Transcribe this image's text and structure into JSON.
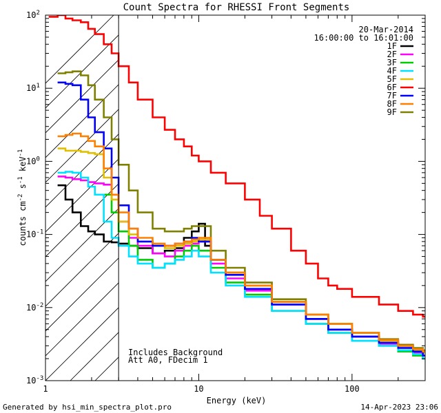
{
  "chart_data": {
    "type": "line",
    "title": "Count Spectra for RHESSI Front Segments",
    "xlabel": "Energy (keV)",
    "ylabel_main": "counts cm",
    "ylabel_exp1": "-2",
    "ylabel_mid": " s",
    "ylabel_exp2": "-1",
    "ylabel_end": " keV",
    "ylabel_exp3": "-1",
    "x_scale": "log",
    "y_scale": "log",
    "xlim": [
      1,
      300
    ],
    "ylim": [
      0.001,
      100
    ],
    "x_tick_labels": [
      {
        "value": 1,
        "label": "1"
      },
      {
        "value": 10,
        "label": "10"
      },
      {
        "value": 100,
        "label": "100"
      }
    ],
    "y_tick_labels": [
      {
        "exp": -3,
        "base": "10",
        "sup": "-3"
      },
      {
        "exp": -2,
        "base": "10",
        "sup": "-2"
      },
      {
        "exp": -1,
        "base": "10",
        "sup": "-1"
      },
      {
        "exp": 0,
        "base": "10",
        "sup": "0"
      },
      {
        "exp": 1,
        "base": "10",
        "sup": "1"
      },
      {
        "exp": 2,
        "base": "10",
        "sup": "2"
      }
    ],
    "date": "20-Mar-2014",
    "time_range": "16:00:00 to 16:01:00",
    "hatched_region_xmax": 3,
    "notes": [
      "Includes Background",
      "Att A0, FDecim 1"
    ],
    "legend_position": "top-right",
    "series": [
      {
        "name": "1F",
        "color": "#000000",
        "points": [
          [
            1.2,
            0.47
          ],
          [
            1.35,
            0.3
          ],
          [
            1.5,
            0.2
          ],
          [
            1.7,
            0.13
          ],
          [
            1.9,
            0.11
          ],
          [
            2.1,
            0.1
          ],
          [
            2.4,
            0.08
          ],
          [
            2.7,
            0.078
          ],
          [
            3,
            0.075
          ],
          [
            3.5,
            0.07
          ],
          [
            4,
            0.065
          ],
          [
            5,
            0.055
          ],
          [
            6,
            0.06
          ],
          [
            7,
            0.065
          ],
          [
            8,
            0.09
          ],
          [
            9,
            0.11
          ],
          [
            10,
            0.14
          ],
          [
            11,
            0.07
          ],
          [
            12,
            0.045
          ],
          [
            15,
            0.03
          ],
          [
            20,
            0.02
          ],
          [
            30,
            0.012
          ],
          [
            50,
            0.007
          ],
          [
            70,
            0.005
          ],
          [
            100,
            0.004
          ],
          [
            150,
            0.0035
          ],
          [
            200,
            0.003
          ],
          [
            250,
            0.0025
          ],
          [
            290,
            0.002
          ]
        ]
      },
      {
        "name": "2F",
        "color": "#ff00ff",
        "points": [
          [
            1.2,
            0.62
          ],
          [
            1.35,
            0.6
          ],
          [
            1.5,
            0.57
          ],
          [
            1.7,
            0.55
          ],
          [
            1.9,
            0.52
          ],
          [
            2.1,
            0.5
          ],
          [
            2.4,
            0.48
          ],
          [
            2.7,
            0.35
          ],
          [
            3,
            0.15
          ],
          [
            3.5,
            0.09
          ],
          [
            4,
            0.07
          ],
          [
            5,
            0.055
          ],
          [
            6,
            0.05
          ],
          [
            7,
            0.06
          ],
          [
            8,
            0.07
          ],
          [
            9,
            0.075
          ],
          [
            10,
            0.08
          ],
          [
            12,
            0.04
          ],
          [
            15,
            0.025
          ],
          [
            20,
            0.017
          ],
          [
            30,
            0.011
          ],
          [
            50,
            0.007
          ],
          [
            70,
            0.005
          ],
          [
            100,
            0.004
          ],
          [
            150,
            0.0032
          ],
          [
            200,
            0.0028
          ],
          [
            250,
            0.0024
          ],
          [
            290,
            0.0022
          ]
        ]
      },
      {
        "name": "3F",
        "color": "#00cc00",
        "points": [
          [
            2.4,
            0.35
          ],
          [
            2.7,
            0.2
          ],
          [
            3,
            0.11
          ],
          [
            3.5,
            0.07
          ],
          [
            4,
            0.045
          ],
          [
            5,
            0.035
          ],
          [
            6,
            0.04
          ],
          [
            7,
            0.05
          ],
          [
            8,
            0.06
          ],
          [
            9,
            0.07
          ],
          [
            10,
            0.06
          ],
          [
            12,
            0.035
          ],
          [
            15,
            0.022
          ],
          [
            20,
            0.015
          ],
          [
            30,
            0.009
          ],
          [
            50,
            0.006
          ],
          [
            70,
            0.0045
          ],
          [
            100,
            0.0035
          ],
          [
            150,
            0.003
          ],
          [
            200,
            0.0025
          ],
          [
            250,
            0.0022
          ],
          [
            290,
            0.002
          ]
        ]
      },
      {
        "name": "4F",
        "color": "#00e0ff",
        "points": [
          [
            1.2,
            0.7
          ],
          [
            1.35,
            0.72
          ],
          [
            1.5,
            0.7
          ],
          [
            1.7,
            0.6
          ],
          [
            1.9,
            0.45
          ],
          [
            2.1,
            0.35
          ],
          [
            2.4,
            0.15
          ],
          [
            2.7,
            0.09
          ],
          [
            3,
            0.07
          ],
          [
            3.5,
            0.05
          ],
          [
            4,
            0.04
          ],
          [
            5,
            0.035
          ],
          [
            6,
            0.04
          ],
          [
            7,
            0.045
          ],
          [
            8,
            0.05
          ],
          [
            9,
            0.06
          ],
          [
            10,
            0.05
          ],
          [
            12,
            0.03
          ],
          [
            15,
            0.02
          ],
          [
            20,
            0.014
          ],
          [
            30,
            0.009
          ],
          [
            50,
            0.006
          ],
          [
            70,
            0.0045
          ],
          [
            100,
            0.0035
          ],
          [
            150,
            0.003
          ],
          [
            200,
            0.0026
          ],
          [
            250,
            0.0023
          ],
          [
            290,
            0.002
          ]
        ]
      },
      {
        "name": "5F",
        "color": "#e0c000",
        "points": [
          [
            1.2,
            1.5
          ],
          [
            1.35,
            1.4
          ],
          [
            1.5,
            1.4
          ],
          [
            1.7,
            1.35
          ],
          [
            1.9,
            1.3
          ],
          [
            2.1,
            1.25
          ],
          [
            2.4,
            0.6
          ],
          [
            2.7,
            0.3
          ],
          [
            3,
            0.15
          ],
          [
            3.5,
            0.1
          ],
          [
            4,
            0.08
          ],
          [
            5,
            0.07
          ],
          [
            6,
            0.065
          ],
          [
            7,
            0.07
          ],
          [
            8,
            0.075
          ],
          [
            9,
            0.08
          ],
          [
            10,
            0.085
          ],
          [
            12,
            0.045
          ],
          [
            15,
            0.03
          ],
          [
            20,
            0.02
          ],
          [
            30,
            0.012
          ],
          [
            50,
            0.008
          ],
          [
            70,
            0.006
          ],
          [
            100,
            0.0045
          ],
          [
            150,
            0.0035
          ],
          [
            200,
            0.003
          ],
          [
            250,
            0.0026
          ],
          [
            290,
            0.0024
          ]
        ]
      },
      {
        "name": "6F",
        "color": "#ff0000",
        "points": [
          [
            1.05,
            95
          ],
          [
            1.2,
            100
          ],
          [
            1.35,
            90
          ],
          [
            1.5,
            85
          ],
          [
            1.7,
            80
          ],
          [
            1.9,
            65
          ],
          [
            2.1,
            55
          ],
          [
            2.4,
            40
          ],
          [
            2.7,
            30
          ],
          [
            3,
            20
          ],
          [
            3.5,
            12
          ],
          [
            4,
            7
          ],
          [
            5,
            4
          ],
          [
            6,
            2.7
          ],
          [
            7,
            2
          ],
          [
            8,
            1.6
          ],
          [
            9,
            1.2
          ],
          [
            10,
            1
          ],
          [
            12,
            0.7
          ],
          [
            15,
            0.5
          ],
          [
            20,
            0.3
          ],
          [
            25,
            0.18
          ],
          [
            30,
            0.12
          ],
          [
            40,
            0.06
          ],
          [
            50,
            0.04
          ],
          [
            60,
            0.025
          ],
          [
            70,
            0.02
          ],
          [
            80,
            0.018
          ],
          [
            100,
            0.014
          ],
          [
            150,
            0.011
          ],
          [
            200,
            0.009
          ],
          [
            250,
            0.008
          ],
          [
            290,
            0.0075
          ]
        ]
      },
      {
        "name": "7F",
        "color": "#0000ff",
        "points": [
          [
            1.2,
            12
          ],
          [
            1.35,
            11.5
          ],
          [
            1.5,
            11
          ],
          [
            1.7,
            7
          ],
          [
            1.9,
            4
          ],
          [
            2.1,
            2.5
          ],
          [
            2.4,
            1.5
          ],
          [
            2.7,
            0.6
          ],
          [
            3,
            0.25
          ],
          [
            3.5,
            0.12
          ],
          [
            4,
            0.08
          ],
          [
            5,
            0.07
          ],
          [
            6,
            0.07
          ],
          [
            7,
            0.075
          ],
          [
            8,
            0.08
          ],
          [
            9,
            0.09
          ],
          [
            10,
            0.08
          ],
          [
            12,
            0.045
          ],
          [
            15,
            0.028
          ],
          [
            20,
            0.018
          ],
          [
            30,
            0.011
          ],
          [
            50,
            0.007
          ],
          [
            70,
            0.005
          ],
          [
            100,
            0.004
          ],
          [
            150,
            0.0033
          ],
          [
            200,
            0.0028
          ],
          [
            250,
            0.0025
          ],
          [
            290,
            0.0022
          ]
        ]
      },
      {
        "name": "8F",
        "color": "#ff8000",
        "points": [
          [
            1.2,
            2.2
          ],
          [
            1.35,
            2.3
          ],
          [
            1.5,
            2.4
          ],
          [
            1.7,
            2.2
          ],
          [
            1.9,
            1.9
          ],
          [
            2.1,
            1.6
          ],
          [
            2.4,
            0.8
          ],
          [
            2.7,
            0.35
          ],
          [
            3,
            0.2
          ],
          [
            3.5,
            0.12
          ],
          [
            4,
            0.09
          ],
          [
            5,
            0.075
          ],
          [
            6,
            0.07
          ],
          [
            7,
            0.075
          ],
          [
            8,
            0.08
          ],
          [
            9,
            0.085
          ],
          [
            10,
            0.09
          ],
          [
            12,
            0.045
          ],
          [
            15,
            0.03
          ],
          [
            20,
            0.02
          ],
          [
            30,
            0.012
          ],
          [
            50,
            0.008
          ],
          [
            70,
            0.006
          ],
          [
            100,
            0.0045
          ],
          [
            150,
            0.0036
          ],
          [
            200,
            0.003
          ],
          [
            250,
            0.0027
          ],
          [
            290,
            0.0025
          ]
        ]
      },
      {
        "name": "9F",
        "color": "#808000",
        "points": [
          [
            1.2,
            16
          ],
          [
            1.35,
            16.5
          ],
          [
            1.5,
            17
          ],
          [
            1.7,
            15
          ],
          [
            1.9,
            11
          ],
          [
            2.1,
            7
          ],
          [
            2.4,
            4
          ],
          [
            2.7,
            2
          ],
          [
            3,
            0.9
          ],
          [
            3.5,
            0.4
          ],
          [
            4,
            0.2
          ],
          [
            5,
            0.12
          ],
          [
            6,
            0.11
          ],
          [
            7,
            0.11
          ],
          [
            8,
            0.12
          ],
          [
            9,
            0.13
          ],
          [
            10,
            0.13
          ],
          [
            12,
            0.06
          ],
          [
            15,
            0.035
          ],
          [
            20,
            0.022
          ],
          [
            30,
            0.013
          ],
          [
            50,
            0.008
          ],
          [
            70,
            0.006
          ],
          [
            100,
            0.0045
          ],
          [
            150,
            0.0037
          ],
          [
            200,
            0.0031
          ],
          [
            250,
            0.0028
          ],
          [
            290,
            0.0026
          ]
        ]
      }
    ]
  },
  "footer": {
    "generator": "Generated by hsi_min_spectra_plot.pro",
    "timestamp": "14-Apr-2023 23:06"
  }
}
